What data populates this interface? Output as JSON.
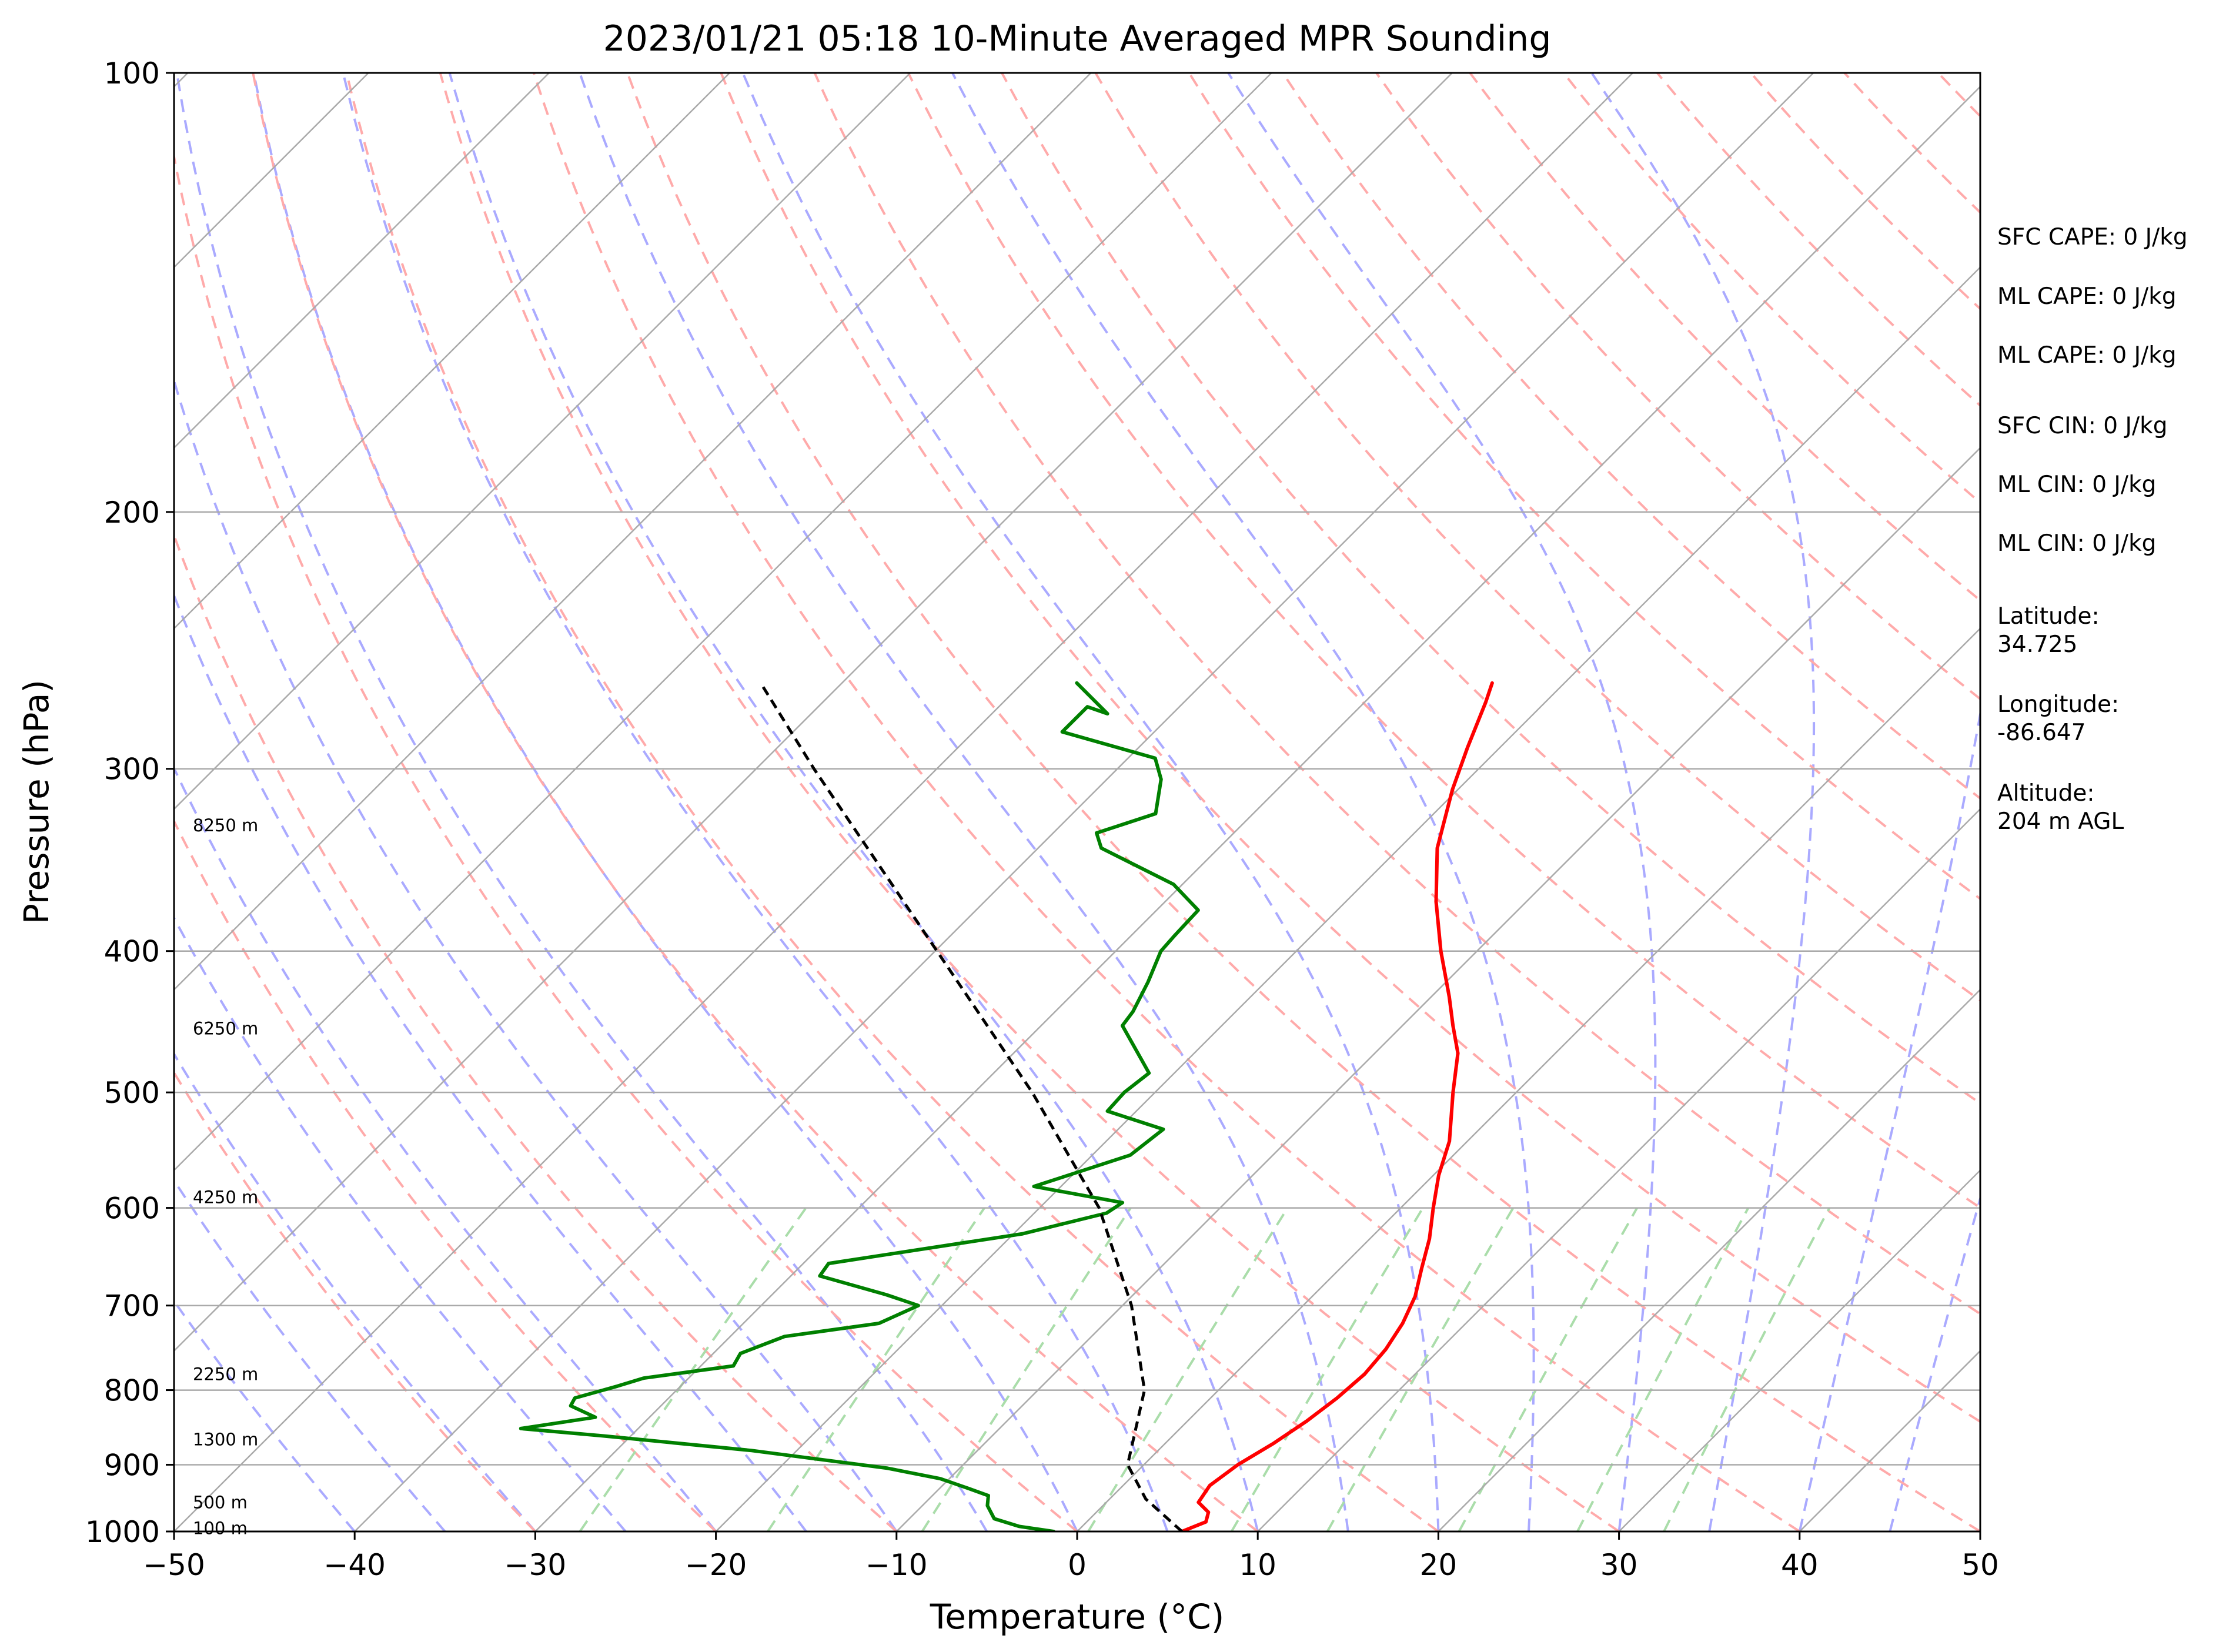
{
  "title": "2023/01/21 05:18 10-Minute Averaged MPR Sounding",
  "chart_data": {
    "type": "line",
    "subtype": "skew-T log-p diagram",
    "xlabel": "Temperature (°C)",
    "ylabel": "Pressure (hPa)",
    "xlim": [
      -50,
      50
    ],
    "ylim": [
      1000,
      100
    ],
    "y_scale": "log",
    "x_ticks": [
      -50,
      -40,
      -30,
      -20,
      -10,
      0,
      10,
      20,
      30,
      40,
      50
    ],
    "x_tick_labels": [
      "−50",
      "−40",
      "−30",
      "−20",
      "−10",
      "0",
      "10",
      "20",
      "30",
      "40",
      "50"
    ],
    "y_ticks": [
      1000,
      900,
      800,
      700,
      600,
      500,
      400,
      300,
      200,
      100
    ],
    "y_tick_labels": [
      "1000",
      "900",
      "800",
      "700",
      "600",
      "500",
      "400",
      "300",
      "200",
      "100"
    ],
    "grid": true,
    "series": [
      {
        "role": "temperature",
        "color": "#ff0000",
        "points": [
          [
            1000,
            5.8
          ],
          [
            985,
            6.6
          ],
          [
            970,
            6.2
          ],
          [
            955,
            5.1
          ],
          [
            930,
            4.8
          ],
          [
            900,
            5.2
          ],
          [
            870,
            6.0
          ],
          [
            840,
            6.6
          ],
          [
            810,
            7.0
          ],
          [
            780,
            7.2
          ],
          [
            750,
            7.0
          ],
          [
            720,
            6.5
          ],
          [
            690,
            5.7
          ],
          [
            660,
            4.5
          ],
          [
            630,
            3.3
          ],
          [
            600,
            1.8
          ],
          [
            570,
            0.3
          ],
          [
            540,
            -1.0
          ],
          [
            500,
            -3.5
          ],
          [
            470,
            -5.4
          ],
          [
            450,
            -7.2
          ],
          [
            430,
            -9.0
          ],
          [
            400,
            -12.0
          ],
          [
            370,
            -15.0
          ],
          [
            340,
            -17.9
          ],
          [
            310,
            -20.3
          ],
          [
            290,
            -21.8
          ],
          [
            270,
            -23.3
          ],
          [
            262,
            -24.0
          ]
        ]
      },
      {
        "role": "dewpoint",
        "color": "#008000",
        "points": [
          [
            1000,
            -1.3
          ],
          [
            992,
            -3.5
          ],
          [
            980,
            -5.3
          ],
          [
            960,
            -6.4
          ],
          [
            945,
            -6.9
          ],
          [
            935,
            -8.3
          ],
          [
            920,
            -10.5
          ],
          [
            905,
            -14.0
          ],
          [
            880,
            -22.5
          ],
          [
            860,
            -31.5
          ],
          [
            850,
            -36.5
          ],
          [
            835,
            -33.0
          ],
          [
            820,
            -35.0
          ],
          [
            810,
            -35.2
          ],
          [
            795,
            -33.5
          ],
          [
            785,
            -32.5
          ],
          [
            770,
            -28.2
          ],
          [
            755,
            -28.5
          ],
          [
            735,
            -27.0
          ],
          [
            720,
            -22.5
          ],
          [
            700,
            -21.3
          ],
          [
            688,
            -23.7
          ],
          [
            668,
            -28.4
          ],
          [
            655,
            -28.6
          ],
          [
            625,
            -19.5
          ],
          [
            605,
            -16.0
          ],
          [
            595,
            -15.7
          ],
          [
            580,
            -21.5
          ],
          [
            552,
            -17.9
          ],
          [
            530,
            -17.5
          ],
          [
            515,
            -21.6
          ],
          [
            500,
            -21.7
          ],
          [
            485,
            -21.4
          ],
          [
            450,
            -25.5
          ],
          [
            440,
            -25.7
          ],
          [
            420,
            -26.5
          ],
          [
            400,
            -27.5
          ],
          [
            390,
            -27.6
          ],
          [
            375,
            -27.7
          ],
          [
            360,
            -30.5
          ],
          [
            340,
            -36.5
          ],
          [
            332,
            -37.6
          ],
          [
            322,
            -35.4
          ],
          [
            305,
            -37.0
          ],
          [
            295,
            -38.5
          ],
          [
            283,
            -45.1
          ],
          [
            272,
            -45.1
          ],
          [
            275,
            -43.6
          ],
          [
            262,
            -47.0
          ]
        ]
      },
      {
        "role": "parcel",
        "color": "#000000",
        "style": "dashed",
        "points": [
          [
            1000,
            5.8
          ],
          [
            950,
            2.0
          ],
          [
            900,
            -0.9
          ],
          [
            800,
            -4.1
          ],
          [
            700,
            -9.5
          ],
          [
            600,
            -16.7
          ],
          [
            500,
            -26.8
          ],
          [
            400,
            -39.9
          ],
          [
            300,
            -56.8
          ],
          [
            262,
            -64.5
          ]
        ]
      }
    ],
    "reference_lines": {
      "isotherms_color": "#aaaaaa",
      "dry_adiabats_color": "#ffaaaa",
      "moist_adiabats_color": "#aaaaff",
      "mixing_ratio_color": "#aaddaa"
    },
    "height_labels": [
      {
        "pressure": 995,
        "text": "100 m"
      },
      {
        "pressure": 955,
        "text": "500 m"
      },
      {
        "pressure": 865,
        "text": "1300 m"
      },
      {
        "pressure": 780,
        "text": "2250 m"
      },
      {
        "pressure": 590,
        "text": "4250 m"
      },
      {
        "pressure": 452,
        "text": "6250 m"
      },
      {
        "pressure": 328,
        "text": "8250 m"
      }
    ]
  },
  "stats": [
    "SFC CAPE: 0 J/kg",
    "ML CAPE: 0 J/kg",
    "ML CAPE: 0 J/kg",
    "SFC CIN: 0 J/kg",
    "ML CIN: 0 J/kg",
    "ML CIN: 0 J/kg"
  ],
  "location": {
    "latitude_label": "Latitude:",
    "latitude_value": "34.725",
    "longitude_label": "Longitude:",
    "longitude_value": "-86.647",
    "altitude_label": "Altitude:",
    "altitude_value": "204 m AGL"
  }
}
